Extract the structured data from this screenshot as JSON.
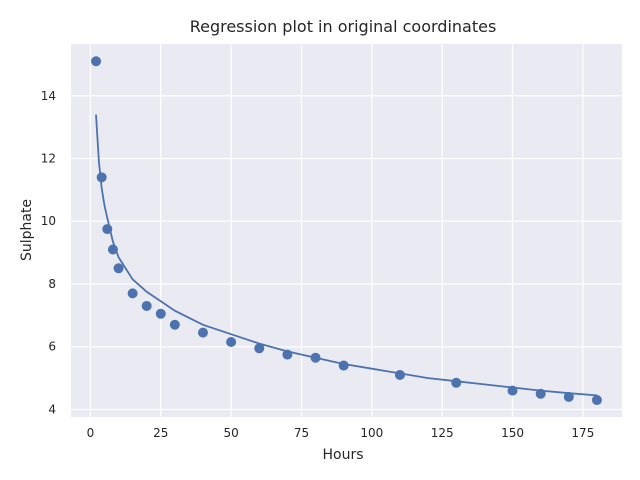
{
  "chart_data": {
    "type": "scatter",
    "title": "Regression plot in original coordinates",
    "xlabel": "Hours",
    "ylabel": "Sulphate",
    "xlim": [
      -6.9,
      188.9
    ],
    "ylim": [
      3.76,
      15.65
    ],
    "xticks": [
      0,
      25,
      50,
      75,
      100,
      125,
      150,
      175
    ],
    "yticks": [
      4,
      6,
      8,
      10,
      12,
      14
    ],
    "grid": true,
    "legend": "none",
    "colors": {
      "background": "#eaeaf2",
      "grid": "#ffffff",
      "series": "#4c72b0"
    },
    "series": [
      {
        "kind": "points",
        "x": [
          2,
          4,
          6,
          8,
          10,
          15,
          20,
          25,
          30,
          40,
          50,
          60,
          70,
          80,
          90,
          110,
          130,
          150,
          160,
          170,
          180
        ],
        "y": [
          15.1,
          11.4,
          9.75,
          9.1,
          8.5,
          7.7,
          7.3,
          7.05,
          6.7,
          6.45,
          6.15,
          5.95,
          5.75,
          5.65,
          5.4,
          5.1,
          4.85,
          4.6,
          4.5,
          4.4,
          4.3
        ]
      },
      {
        "kind": "fit",
        "x": [
          2,
          3,
          4,
          5,
          6,
          8,
          10,
          15,
          20,
          25,
          30,
          40,
          50,
          60,
          70,
          80,
          90,
          100,
          110,
          120,
          130,
          140,
          150,
          160,
          170,
          180
        ],
        "y": [
          13.4,
          11.9,
          11.05,
          10.5,
          10.1,
          9.35,
          8.85,
          8.15,
          7.75,
          7.45,
          7.15,
          6.7,
          6.4,
          6.1,
          5.85,
          5.65,
          5.45,
          5.3,
          5.15,
          5.0,
          4.9,
          4.8,
          4.7,
          4.6,
          4.52,
          4.45
        ]
      }
    ]
  }
}
